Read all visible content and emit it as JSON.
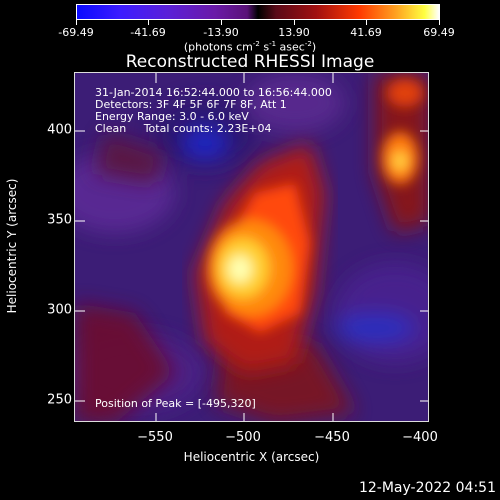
{
  "colorbar": {
    "tick_labels": [
      "-69.49",
      "-41.69",
      "-13.90",
      "13.90",
      "41.69",
      "69.49"
    ],
    "units_prefix": "(photons cm",
    "units_exp1": "-2",
    "units_mid": " s",
    "units_exp2": "-1",
    "units_mid2": " asec",
    "units_exp3": "-2",
    "units_suffix": ")"
  },
  "title": "Reconstructed RHESSI Image",
  "info": {
    "line1": "31-Jan-2014 16:52:44.000 to 16:56:44.000",
    "line2": "Detectors: 3F 4F 5F 6F 7F 8F, Att 1",
    "line3": "Energy Range: 3.0 - 6.0 keV",
    "line4": "Clean     Total counts: 2.23E+04",
    "peak": "Position of Peak = [-495,320]"
  },
  "axes": {
    "xlabel": "Heliocentric X (arcsec)",
    "ylabel": "Heliocentric Y (arcsec)",
    "xticks": [
      "−550",
      "−500",
      "−450",
      "−400"
    ],
    "yticks": [
      "400",
      "350",
      "300",
      "250"
    ]
  },
  "timestamp": "12-May-2022 04:51",
  "colors": {
    "background": "#000000",
    "foreground": "#ffffff"
  }
}
